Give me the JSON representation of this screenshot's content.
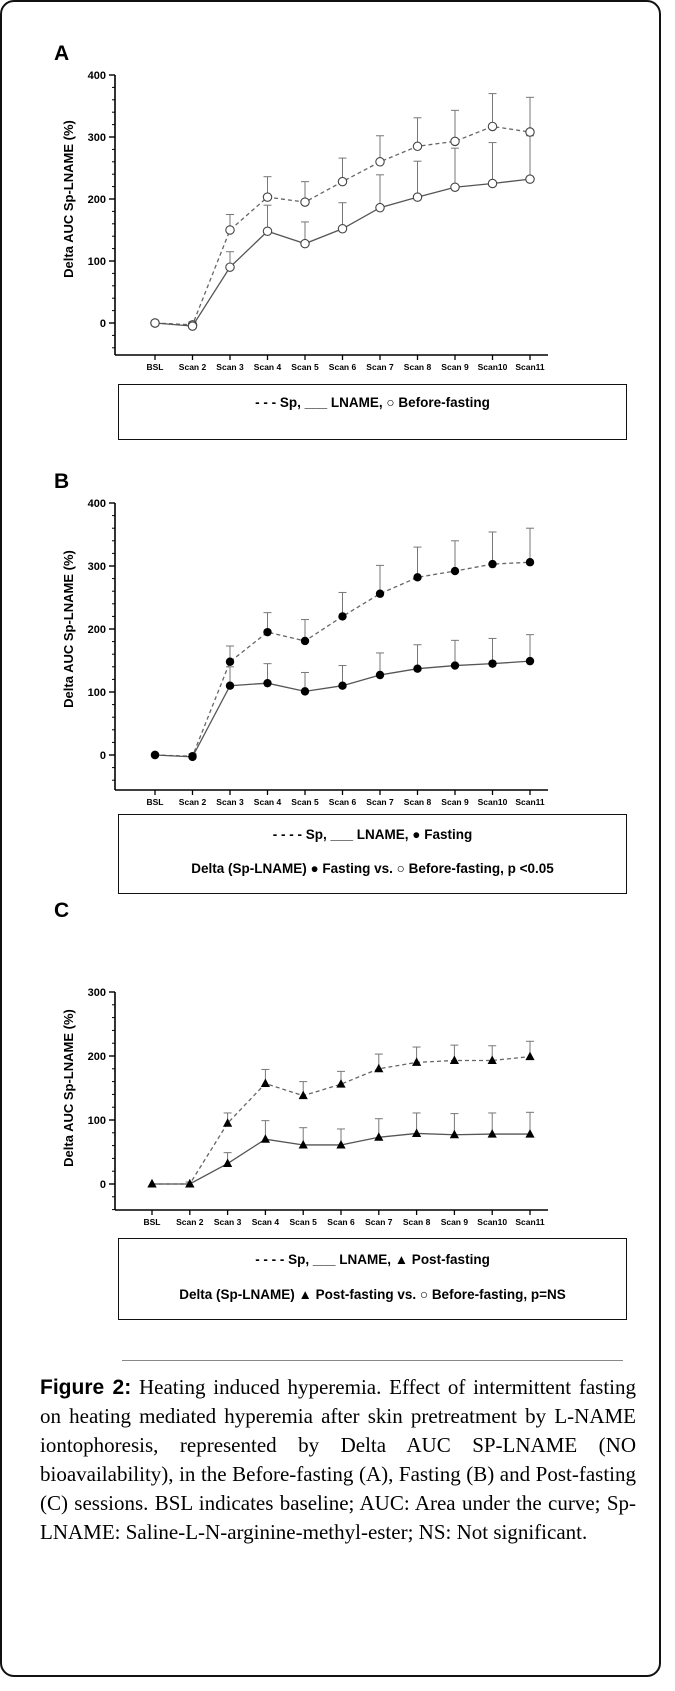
{
  "chart_data": [
    {
      "panel_label": "A",
      "type": "line",
      "ylabel": "Delta AUC Sp-LNAME (%)",
      "xlabel": "",
      "categories": [
        "BSL",
        "Scan 2",
        "Scan 3",
        "Scan 4",
        "Scan 5",
        "Scan 6",
        "Scan 7",
        "Scan 8",
        "Scan 9",
        "Scan10",
        "Scan11"
      ],
      "yticks": [
        0,
        100,
        200,
        300,
        400
      ],
      "ylim": [
        -50,
        400
      ],
      "marker": "circle-open",
      "series": [
        {
          "name": "Sp",
          "style": "dashed",
          "values": [
            0,
            -3,
            150,
            203,
            195,
            228,
            260,
            285,
            293,
            317,
            308
          ],
          "errors": [
            0,
            5,
            25,
            33,
            33,
            38,
            42,
            46,
            50,
            53,
            56
          ]
        },
        {
          "name": "LNAME",
          "style": "solid",
          "values": [
            0,
            -5,
            90,
            148,
            128,
            152,
            186,
            203,
            219,
            225,
            232
          ],
          "errors": [
            0,
            5,
            25,
            42,
            35,
            42,
            53,
            58,
            63,
            66,
            70
          ]
        }
      ],
      "legend_lines": [
        "- - -  Sp,  ___  LNAME, ○ Before-fasting"
      ]
    },
    {
      "panel_label": "B",
      "type": "line",
      "ylabel": "Delta AUC Sp-LNAME (%)",
      "xlabel": "",
      "categories": [
        "BSL",
        "Scan 2",
        "Scan 3",
        "Scan 4",
        "Scan 5",
        "Scan 6",
        "Scan 7",
        "Scan 8",
        "Scan 9",
        "Scan10",
        "Scan11"
      ],
      "yticks": [
        0,
        100,
        200,
        300,
        400
      ],
      "ylim": [
        -50,
        400
      ],
      "marker": "circle-filled",
      "series": [
        {
          "name": "Sp",
          "style": "dashed",
          "values": [
            0,
            -2,
            148,
            195,
            181,
            220,
            256,
            282,
            292,
            303,
            306
          ],
          "errors": [
            0,
            4,
            25,
            31,
            34,
            38,
            45,
            48,
            48,
            51,
            54
          ]
        },
        {
          "name": "LNAME",
          "style": "solid",
          "values": [
            0,
            -3,
            110,
            114,
            101,
            110,
            127,
            137,
            142,
            145,
            149
          ],
          "errors": [
            0,
            4,
            30,
            31,
            30,
            32,
            35,
            38,
            40,
            40,
            42
          ]
        }
      ],
      "legend_lines": [
        "- - - -  Sp,  ___  LNAME, ● Fasting",
        "Delta (Sp-LNAME) ● Fasting vs. ○ Before-fasting, p <0.05"
      ]
    },
    {
      "panel_label": "C",
      "type": "line",
      "ylabel": "Delta AUC Sp-LNAME (%)",
      "xlabel": "",
      "categories": [
        "BSL",
        "Scan 2",
        "Scan 3",
        "Scan 4",
        "Scan 5",
        "Scan 6",
        "Scan 7",
        "Scan 8",
        "Scan 9",
        "Scan10",
        "Scan11"
      ],
      "yticks": [
        0,
        100,
        200,
        300
      ],
      "ylim": [
        -40,
        300
      ],
      "marker": "triangle-filled",
      "series": [
        {
          "name": "Sp",
          "style": "dashed",
          "values": [
            0,
            0,
            95,
            157,
            138,
            156,
            180,
            190,
            193,
            193,
            199
          ],
          "errors": [
            0,
            3,
            16,
            22,
            22,
            20,
            23,
            24,
            24,
            23,
            24
          ]
        },
        {
          "name": "LNAME",
          "style": "solid",
          "values": [
            0,
            0,
            32,
            70,
            61,
            61,
            73,
            79,
            77,
            78,
            78
          ],
          "errors": [
            0,
            3,
            17,
            29,
            27,
            25,
            29,
            32,
            33,
            33,
            34
          ]
        }
      ],
      "legend_lines": [
        "- - - -  Sp,  ___  LNAME, ▲ Post-fasting",
        "Delta (Sp-LNAME) ▲ Post-fasting vs. ○ Before-fasting,  p=NS"
      ]
    }
  ],
  "caption": {
    "label": "Figure 2:",
    "text": "Heating induced hyperemia. Effect of intermittent fasting on heating mediated hyperemia after skin pretreatment by L-NAME iontophoresis, represented by Delta AUC SP-LNAME (NO bioavailability), in the Before-fasting (A), Fasting (B) and Post-fasting (C) sessions. BSL indicates baseline; AUC: Area under the curve; Sp-LNAME: Saline-L-N-arginine-methyl-ester; NS: Not significant."
  }
}
